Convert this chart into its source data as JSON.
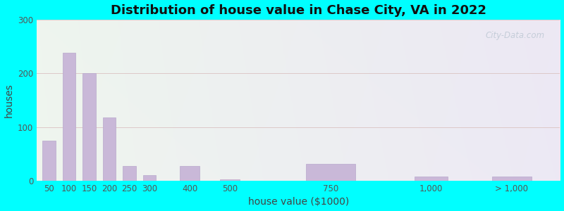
{
  "title": "Distribution of house value in Chase City, VA in 2022",
  "xlabel": "house value ($1000)",
  "ylabel": "houses",
  "bar_color": "#c9b8d8",
  "bar_edgecolor": "#b8a8cc",
  "background_outer": "#00ffff",
  "ylim": [
    0,
    300
  ],
  "yticks": [
    0,
    100,
    200,
    300
  ],
  "grid_color": "#ddc8c8",
  "categories": [
    "50",
    "100",
    "150",
    "200",
    "250",
    "300",
    "400",
    "500",
    "750",
    "1,000",
    "> 1,000"
  ],
  "x_positions": [
    50,
    100,
    150,
    200,
    250,
    300,
    400,
    500,
    750,
    1000,
    1200
  ],
  "bar_widths": [
    40,
    40,
    40,
    40,
    40,
    40,
    60,
    60,
    150,
    100,
    120
  ],
  "values": [
    75,
    238,
    200,
    118,
    27,
    10,
    27,
    3,
    32,
    8,
    8
  ],
  "xtick_positions": [
    50,
    100,
    150,
    200,
    250,
    300,
    400,
    500,
    750,
    1000,
    1200
  ],
  "xtick_labels": [
    "50",
    "100",
    "150",
    "200",
    "250",
    "300",
    "400",
    "500",
    "750",
    "1,000",
    "> 1,000"
  ],
  "xlim": [
    20,
    1320
  ],
  "watermark": "City-Data.com",
  "title_fontsize": 13,
  "axis_fontsize": 10,
  "tick_fontsize": 8.5
}
